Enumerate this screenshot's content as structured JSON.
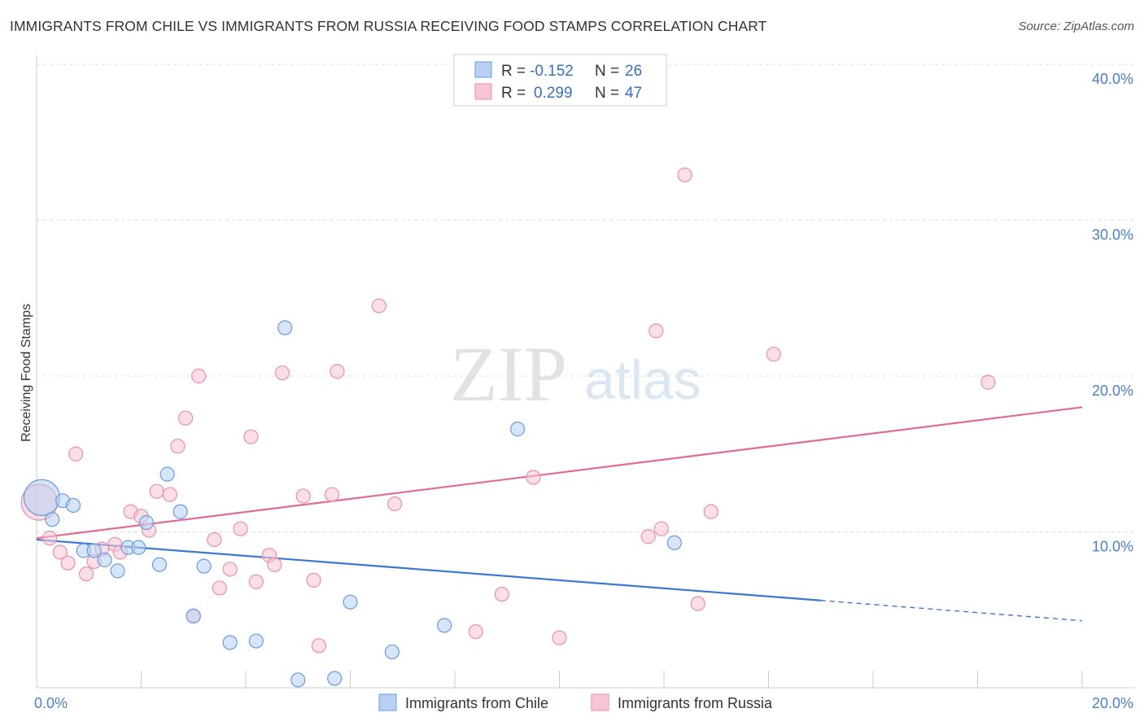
{
  "header": {
    "title": "IMMIGRANTS FROM CHILE VS IMMIGRANTS FROM RUSSIA RECEIVING FOOD STAMPS CORRELATION CHART",
    "source": "Source: ZipAtlas.com"
  },
  "watermark": {
    "zip": "ZIP",
    "atlas": "atlas"
  },
  "colors": {
    "chile_fill": "#b7d0f3",
    "chile_stroke": "#6a9be0",
    "chile_line": "#3a78d0",
    "russia_fill": "#f7c5d4",
    "russia_stroke": "#e98fab",
    "russia_line": "#e06b95",
    "grid": "#dddddd",
    "axis_label": "#4a7fc9"
  },
  "legend": {
    "chile": {
      "r_label": "R =",
      "r_value": "-0.152",
      "n_label": "N =",
      "n_value": "26"
    },
    "russia": {
      "r_label": "R =",
      "r_value": "0.299",
      "n_label": "N =",
      "n_value": "47"
    }
  },
  "chart_data": {
    "type": "scatter",
    "title": "IMMIGRANTS FROM CHILE VS IMMIGRANTS FROM RUSSIA RECEIVING FOOD STAMPS CORRELATION CHART",
    "xlabel": "",
    "ylabel": "Receiving Food Stamps",
    "xlim": [
      0,
      20
    ],
    "ylim": [
      0,
      40
    ],
    "x_tick_labels": [
      "0.0%",
      "20.0%"
    ],
    "y_ticks": [
      10,
      20,
      30,
      40
    ],
    "y_tick_labels": [
      "10.0%",
      "20.0%",
      "30.0%",
      "40.0%"
    ],
    "grid": true,
    "legend_position": "top-center",
    "series": [
      {
        "name": "Immigrants from Chile",
        "r": -0.152,
        "n": 26,
        "points": [
          {
            "x": 0.1,
            "y": 12.2,
            "big": true
          },
          {
            "x": 0.3,
            "y": 10.8
          },
          {
            "x": 0.5,
            "y": 12.0
          },
          {
            "x": 0.7,
            "y": 11.7
          },
          {
            "x": 0.9,
            "y": 8.8
          },
          {
            "x": 1.1,
            "y": 8.8
          },
          {
            "x": 1.3,
            "y": 8.2
          },
          {
            "x": 1.55,
            "y": 7.5
          },
          {
            "x": 1.75,
            "y": 9.0
          },
          {
            "x": 1.95,
            "y": 9.0
          },
          {
            "x": 2.1,
            "y": 10.6
          },
          {
            "x": 2.35,
            "y": 7.9
          },
          {
            "x": 2.5,
            "y": 13.7
          },
          {
            "x": 2.75,
            "y": 11.3
          },
          {
            "x": 3.0,
            "y": 4.6
          },
          {
            "x": 3.2,
            "y": 7.8
          },
          {
            "x": 3.7,
            "y": 2.9
          },
          {
            "x": 4.2,
            "y": 3.0
          },
          {
            "x": 4.75,
            "y": 23.1
          },
          {
            "x": 5.0,
            "y": 0.5
          },
          {
            "x": 5.7,
            "y": 0.6
          },
          {
            "x": 6.0,
            "y": 5.5
          },
          {
            "x": 6.8,
            "y": 2.3
          },
          {
            "x": 7.8,
            "y": 4.0
          },
          {
            "x": 9.2,
            "y": 16.6
          },
          {
            "x": 12.2,
            "y": 9.3
          }
        ],
        "trend": {
          "x1": 0,
          "y1": 9.5,
          "x2": 15.0,
          "y2": 5.6,
          "dash_x2": 20,
          "dash_y2": 4.3
        }
      },
      {
        "name": "Immigrants from Russia",
        "r": 0.299,
        "n": 47,
        "points": [
          {
            "x": 0.05,
            "y": 11.9,
            "big": true
          },
          {
            "x": 0.25,
            "y": 9.6
          },
          {
            "x": 0.45,
            "y": 8.7
          },
          {
            "x": 0.6,
            "y": 8.0
          },
          {
            "x": 0.75,
            "y": 15.0
          },
          {
            "x": 0.95,
            "y": 7.3
          },
          {
            "x": 1.1,
            "y": 8.1
          },
          {
            "x": 1.25,
            "y": 8.9
          },
          {
            "x": 1.5,
            "y": 9.2
          },
          {
            "x": 1.6,
            "y": 8.7
          },
          {
            "x": 1.8,
            "y": 11.3
          },
          {
            "x": 2.0,
            "y": 11.0
          },
          {
            "x": 2.15,
            "y": 10.1
          },
          {
            "x": 2.3,
            "y": 12.6
          },
          {
            "x": 2.55,
            "y": 12.4
          },
          {
            "x": 2.7,
            "y": 15.5
          },
          {
            "x": 2.85,
            "y": 17.3
          },
          {
            "x": 3.0,
            "y": 4.6
          },
          {
            "x": 3.1,
            "y": 20.0
          },
          {
            "x": 3.4,
            "y": 9.5
          },
          {
            "x": 3.5,
            "y": 6.4
          },
          {
            "x": 3.7,
            "y": 7.6
          },
          {
            "x": 3.9,
            "y": 10.2
          },
          {
            "x": 4.1,
            "y": 16.1
          },
          {
            "x": 4.2,
            "y": 6.8
          },
          {
            "x": 4.45,
            "y": 8.5
          },
          {
            "x": 4.55,
            "y": 7.9
          },
          {
            "x": 4.7,
            "y": 20.2
          },
          {
            "x": 5.1,
            "y": 12.3
          },
          {
            "x": 5.3,
            "y": 6.9
          },
          {
            "x": 5.4,
            "y": 2.7
          },
          {
            "x": 5.65,
            "y": 12.4
          },
          {
            "x": 5.75,
            "y": 20.3
          },
          {
            "x": 6.55,
            "y": 24.5
          },
          {
            "x": 6.85,
            "y": 11.8
          },
          {
            "x": 8.4,
            "y": 3.6
          },
          {
            "x": 8.9,
            "y": 6.0
          },
          {
            "x": 9.5,
            "y": 13.5
          },
          {
            "x": 10.0,
            "y": 3.2
          },
          {
            "x": 11.7,
            "y": 9.7
          },
          {
            "x": 11.85,
            "y": 22.9
          },
          {
            "x": 11.95,
            "y": 10.2
          },
          {
            "x": 12.4,
            "y": 32.9
          },
          {
            "x": 12.65,
            "y": 5.4
          },
          {
            "x": 12.9,
            "y": 11.3
          },
          {
            "x": 14.1,
            "y": 21.4
          },
          {
            "x": 18.2,
            "y": 19.6
          }
        ],
        "trend": {
          "x1": 0,
          "y1": 9.6,
          "x2": 20,
          "y2": 18.0
        }
      }
    ]
  },
  "bottom_legend": {
    "chile_label": "Immigrants from Chile",
    "russia_label": "Immigrants from Russia"
  }
}
